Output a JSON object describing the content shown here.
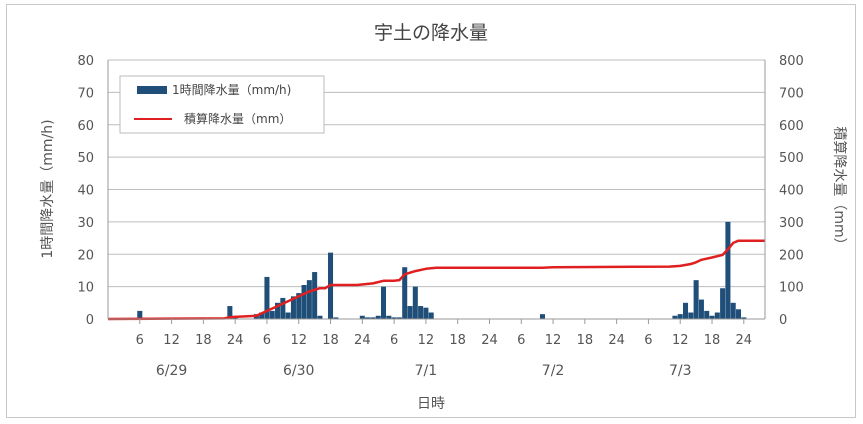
{
  "chart_data": {
    "type": "bar",
    "title": "宇土の降水量",
    "xlabel": "日時",
    "ylabel_left": "1時間降水量（mm/h)",
    "ylabel_right": "積算降水量（mm）",
    "ylim_left": [
      0,
      80
    ],
    "ylim_right": [
      0,
      800
    ],
    "y_ticks_left": [
      "0",
      "10",
      "20",
      "30",
      "40",
      "50",
      "60",
      "70",
      "80"
    ],
    "y_ticks_right": [
      "0",
      "100",
      "200",
      "300",
      "400",
      "500",
      "600",
      "700",
      "800"
    ],
    "hour_ticks": [
      "6",
      "12",
      "18",
      "24",
      "6",
      "12",
      "18",
      "24",
      "6",
      "12",
      "18",
      "24",
      "6",
      "12",
      "18",
      "24",
      "6",
      "12",
      "18",
      "24"
    ],
    "date_labels": [
      "6/29",
      "6/30",
      "7/1",
      "7/2",
      "7/3"
    ],
    "grid": true,
    "legend_position": "top-left",
    "hours_total": 120,
    "series": [
      {
        "name": "1時間降水量（mm/h)",
        "type": "bar",
        "axis": "left",
        "color": "#1f4e79",
        "points": [
          [
            6,
            2.5
          ],
          [
            23,
            4
          ],
          [
            24,
            0.5
          ],
          [
            28,
            1.5
          ],
          [
            29,
            2
          ],
          [
            30,
            13
          ],
          [
            31,
            2.5
          ],
          [
            32,
            5
          ],
          [
            33,
            6.5
          ],
          [
            34,
            2
          ],
          [
            35,
            7
          ],
          [
            36,
            8
          ],
          [
            37,
            10.5
          ],
          [
            38,
            12
          ],
          [
            39,
            14.5
          ],
          [
            40,
            1
          ],
          [
            42,
            20.5
          ],
          [
            43,
            0.5
          ],
          [
            48,
            1
          ],
          [
            49,
            0.5
          ],
          [
            50,
            0.5
          ],
          [
            51,
            1
          ],
          [
            52,
            10
          ],
          [
            53,
            1
          ],
          [
            54,
            0.5
          ],
          [
            55,
            0.5
          ],
          [
            56,
            16
          ],
          [
            57,
            4
          ],
          [
            58,
            10
          ],
          [
            59,
            4
          ],
          [
            60,
            3.5
          ],
          [
            61,
            2
          ],
          [
            82,
            1.5
          ],
          [
            107,
            1
          ],
          [
            108,
            1.5
          ],
          [
            109,
            5
          ],
          [
            110,
            2
          ],
          [
            111,
            12
          ],
          [
            112,
            6
          ],
          [
            113,
            2.5
          ],
          [
            114,
            1
          ],
          [
            115,
            2
          ],
          [
            116,
            9.5
          ],
          [
            117,
            30
          ],
          [
            118,
            5
          ],
          [
            119,
            3
          ],
          [
            120,
            0.5
          ]
        ]
      },
      {
        "name": "積算降水量（mm）",
        "type": "line",
        "axis": "right",
        "color": "#e02020",
        "points": [
          [
            0,
            0
          ],
          [
            22,
            2
          ],
          [
            23,
            6
          ],
          [
            28,
            10
          ],
          [
            30,
            25
          ],
          [
            32,
            40
          ],
          [
            34,
            55
          ],
          [
            36,
            70
          ],
          [
            38,
            85
          ],
          [
            40,
            95
          ],
          [
            41,
            95
          ],
          [
            42,
            105
          ],
          [
            47,
            105
          ],
          [
            50,
            110
          ],
          [
            52,
            118
          ],
          [
            54,
            118
          ],
          [
            55,
            120
          ],
          [
            56,
            138
          ],
          [
            58,
            148
          ],
          [
            60,
            155
          ],
          [
            62,
            158
          ],
          [
            82,
            158
          ],
          [
            84,
            160
          ],
          [
            106,
            162
          ],
          [
            108,
            164
          ],
          [
            110,
            170
          ],
          [
            111,
            175
          ],
          [
            112,
            183
          ],
          [
            114,
            190
          ],
          [
            116,
            198
          ],
          [
            117,
            215
          ],
          [
            118,
            235
          ],
          [
            119,
            242
          ],
          [
            120,
            242
          ],
          [
            124,
            242
          ]
        ]
      }
    ]
  }
}
